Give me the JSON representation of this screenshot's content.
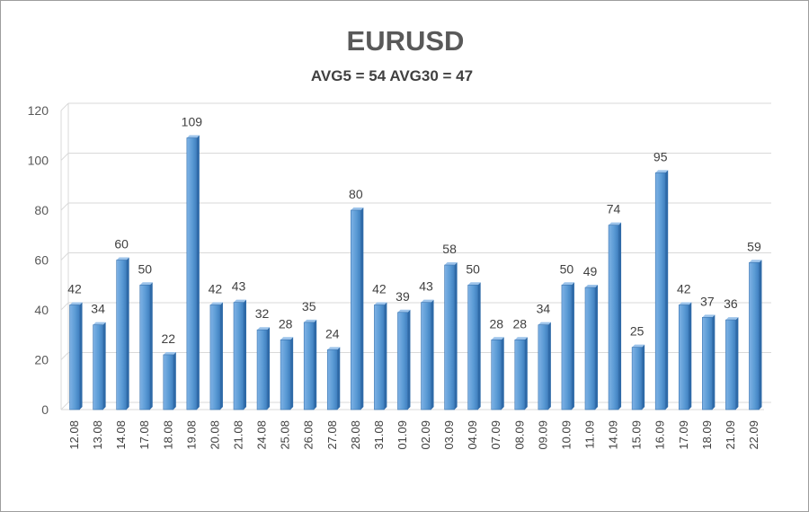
{
  "chart_data": {
    "type": "bar",
    "title": "EURUSD",
    "subtitle": "AVG5 = 54 AVG30 = 47",
    "xlabel": "",
    "ylabel": "",
    "ylim": [
      0,
      120
    ],
    "yticks": [
      0,
      20,
      40,
      60,
      80,
      100,
      120
    ],
    "grid": true,
    "legend": "none",
    "bar_color": "#5b9bd5",
    "categories": [
      "12.08",
      "13.08",
      "14.08",
      "17.08",
      "18.08",
      "19.08",
      "20.08",
      "21.08",
      "24.08",
      "25.08",
      "26.08",
      "27.08",
      "28.08",
      "31.08",
      "01.09",
      "02.09",
      "03.09",
      "04.09",
      "07.09",
      "08.09",
      "09.09",
      "10.09",
      "11.09",
      "14.09",
      "15.09",
      "16.09",
      "17.09",
      "18.09",
      "21.09",
      "22.09"
    ],
    "values": [
      42,
      34,
      60,
      50,
      22,
      109,
      42,
      43,
      32,
      28,
      35,
      24,
      80,
      42,
      39,
      43,
      58,
      50,
      28,
      28,
      34,
      50,
      49,
      74,
      25,
      95,
      42,
      37,
      36,
      59
    ]
  }
}
